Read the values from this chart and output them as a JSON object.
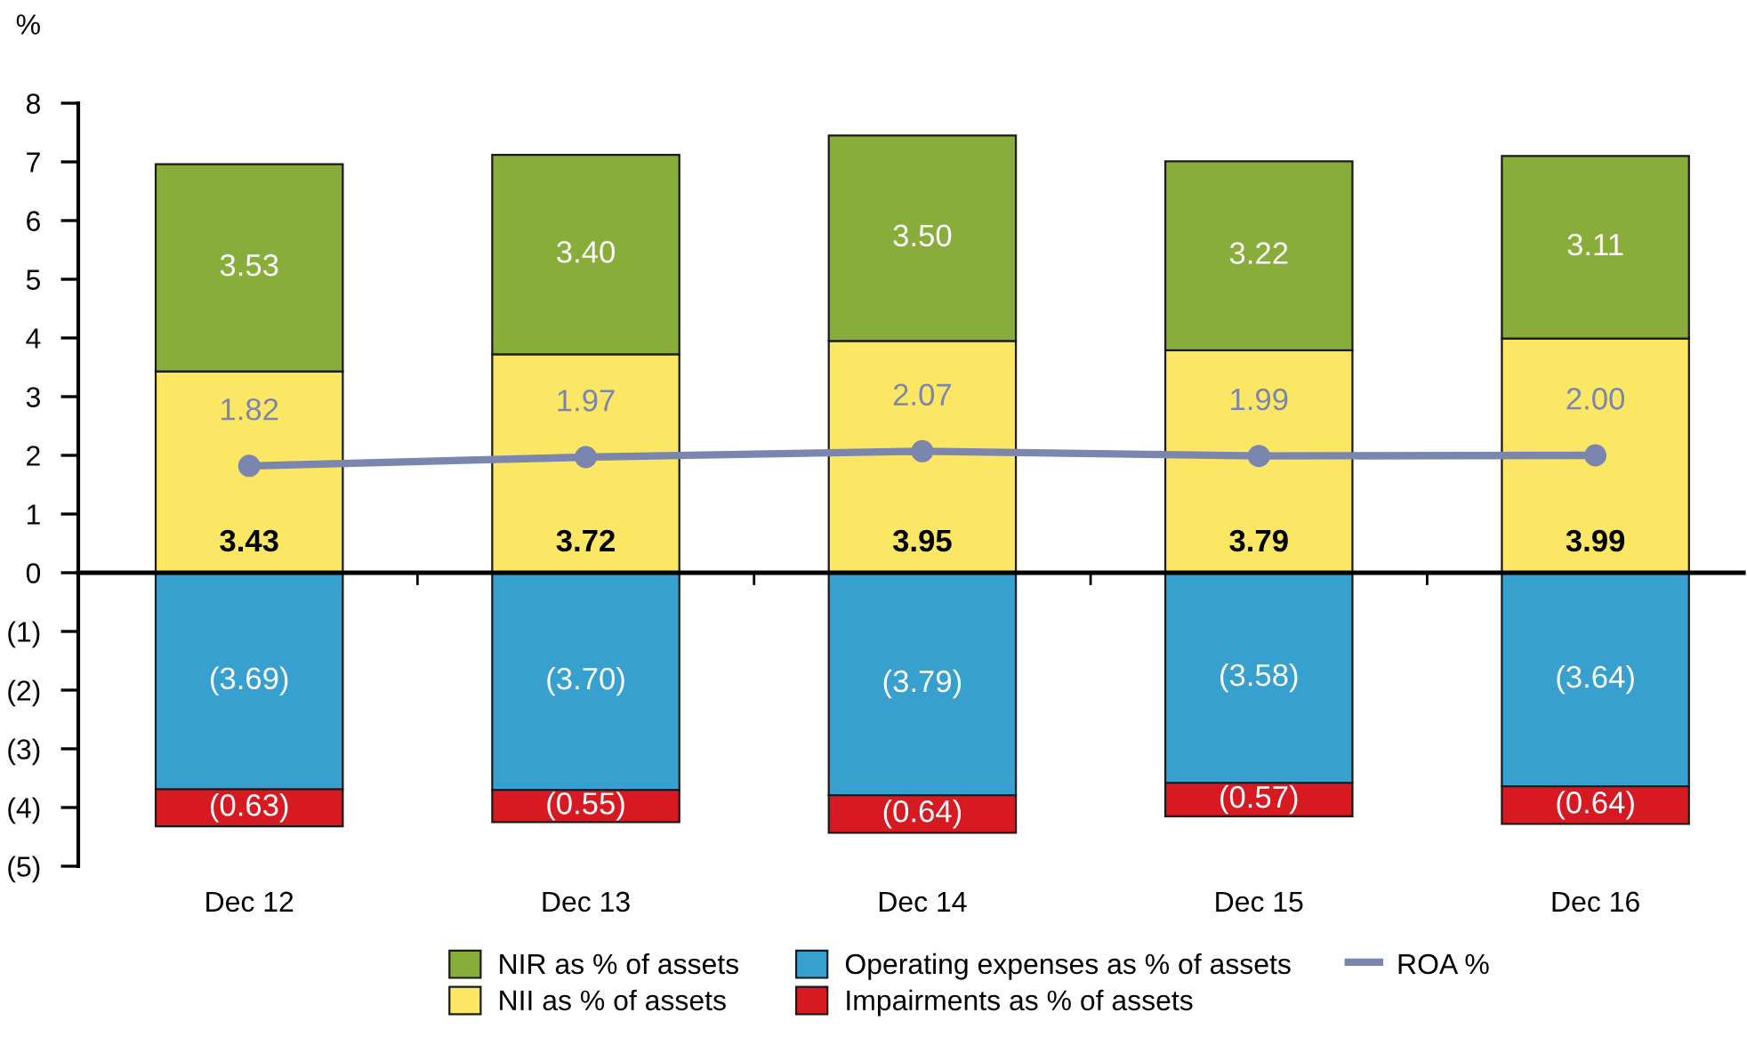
{
  "chart_data": {
    "type": "bar",
    "stacked": true,
    "ylabel": "%",
    "categories": [
      "Dec 12",
      "Dec 13",
      "Dec 14",
      "Dec 15",
      "Dec 16"
    ],
    "ylim": [
      -5,
      8
    ],
    "yticks": [
      {
        "value": -5,
        "label": "(5)"
      },
      {
        "value": -4,
        "label": "(4)"
      },
      {
        "value": -3,
        "label": "(3)"
      },
      {
        "value": -2,
        "label": "(2)"
      },
      {
        "value": -1,
        "label": "(1)"
      },
      0,
      1,
      2,
      3,
      4,
      5,
      6,
      7,
      8
    ],
    "legend": "bottom",
    "marker": "circle",
    "line_style": "solid",
    "series": [
      {
        "name": "NII as % of assets",
        "color": "#fce765",
        "values": [
          3.43,
          3.72,
          3.95,
          3.79,
          3.99
        ],
        "value_labels": [
          "3.43",
          "3.72",
          "3.95",
          "3.79",
          "3.99"
        ]
      },
      {
        "name": "NIR as % of assets",
        "color": "#88ad3b",
        "values": [
          3.53,
          3.4,
          3.5,
          3.22,
          3.11
        ],
        "value_labels": [
          "3.53",
          "3.40",
          "3.50",
          "3.22",
          "3.11"
        ]
      },
      {
        "name": "Operating expenses as % of assets",
        "color": "#38a0ce",
        "values": [
          -3.69,
          -3.7,
          -3.79,
          -3.58,
          -3.64
        ],
        "value_labels": [
          "(3.69)",
          "(3.70)",
          "(3.79)",
          "(3.58)",
          "(3.64)"
        ]
      },
      {
        "name": "Impairments as % of assets",
        "color": "#d71a21",
        "values": [
          -0.63,
          -0.55,
          -0.64,
          -0.57,
          -0.64
        ],
        "value_labels": [
          "(0.63)",
          "(0.55)",
          "(0.64)",
          "(0.57)",
          "(0.64)"
        ]
      },
      {
        "name": "ROA %",
        "type": "line",
        "color": "#7a86ae",
        "values": [
          1.82,
          1.97,
          2.07,
          1.99,
          2.0
        ],
        "value_labels": [
          "1.82",
          "1.97",
          "2.07",
          "1.99",
          "2.00"
        ]
      }
    ]
  }
}
